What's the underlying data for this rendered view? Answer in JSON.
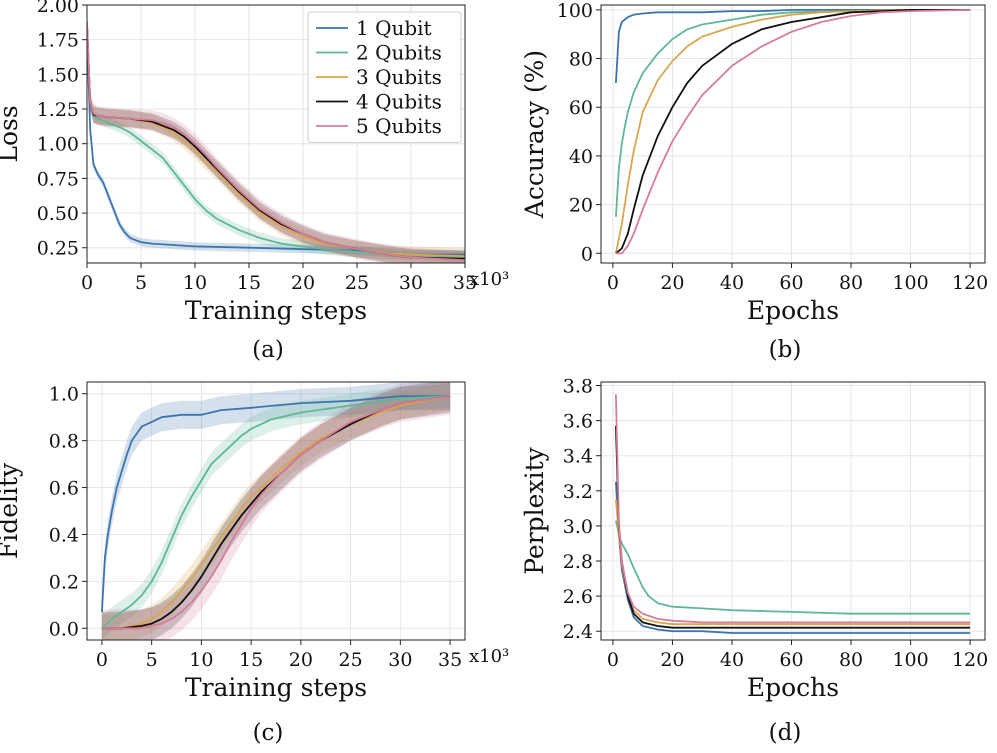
{
  "chart_data": [
    {
      "id": "a",
      "type": "line",
      "caption": "(a)",
      "xlabel": "Training steps",
      "ylabel": "Loss",
      "x_multiplier": "x10^3",
      "xlim": [
        0,
        35
      ],
      "ylim": [
        0.14,
        2.0
      ],
      "xticks": [
        0,
        5,
        10,
        15,
        20,
        25,
        30,
        35
      ],
      "yticks": [
        0.25,
        0.5,
        0.75,
        1.0,
        1.25,
        1.5,
        1.75,
        2.0
      ],
      "xtick_labels": [
        "0",
        "5",
        "10",
        "15",
        "20",
        "25",
        "30",
        "35"
      ],
      "ytick_labels": [
        "0.25",
        "0.50",
        "0.75",
        "1.00",
        "1.25",
        "1.50",
        "1.75",
        "2.00"
      ],
      "grid": true,
      "shaded_band": true,
      "legend": {
        "placement": "top-right"
      },
      "series": [
        {
          "name": "1 Qubit",
          "color": "#3b75af",
          "band": 0.03,
          "x": [
            0,
            0.3,
            0.6,
            1,
            1.5,
            2,
            2.5,
            3,
            3.5,
            4,
            5,
            6,
            8,
            10,
            15,
            20,
            25,
            30,
            35
          ],
          "y": [
            1.82,
            1.1,
            0.85,
            0.78,
            0.72,
            0.62,
            0.52,
            0.42,
            0.36,
            0.32,
            0.29,
            0.28,
            0.27,
            0.26,
            0.25,
            0.24,
            0.23,
            0.2,
            0.2
          ]
        },
        {
          "name": "2 Qubits",
          "color": "#5fb894",
          "band": 0.04,
          "x": [
            0,
            0.3,
            0.6,
            1,
            2,
            3,
            4,
            5,
            6,
            7,
            8,
            9,
            10,
            11,
            12,
            13,
            14,
            16,
            18,
            20,
            22,
            25,
            30,
            35
          ],
          "y": [
            1.85,
            1.3,
            1.2,
            1.18,
            1.15,
            1.12,
            1.08,
            1.02,
            0.96,
            0.9,
            0.8,
            0.7,
            0.6,
            0.52,
            0.46,
            0.42,
            0.38,
            0.32,
            0.28,
            0.26,
            0.24,
            0.22,
            0.2,
            0.18
          ]
        },
        {
          "name": "3 Qubits",
          "color": "#d9a54e",
          "band": 0.06,
          "x": [
            0,
            0.3,
            0.6,
            1,
            2,
            4,
            6,
            7,
            8,
            9,
            10,
            11,
            12,
            13,
            14,
            15,
            16,
            18,
            20,
            22,
            25,
            28,
            30,
            35
          ],
          "y": [
            1.86,
            1.3,
            1.21,
            1.2,
            1.19,
            1.18,
            1.15,
            1.12,
            1.08,
            1.02,
            0.95,
            0.87,
            0.8,
            0.72,
            0.64,
            0.57,
            0.5,
            0.4,
            0.33,
            0.28,
            0.24,
            0.21,
            0.2,
            0.19
          ]
        },
        {
          "name": "4 Qubits",
          "color": "#111111",
          "band": 0.06,
          "x": [
            0,
            0.3,
            0.6,
            1,
            2,
            4,
            6,
            7,
            8,
            9,
            10,
            11,
            12,
            13,
            14,
            15,
            16,
            18,
            20,
            22,
            25,
            28,
            30,
            35
          ],
          "y": [
            1.86,
            1.3,
            1.21,
            1.2,
            1.19,
            1.18,
            1.16,
            1.13,
            1.1,
            1.05,
            0.98,
            0.9,
            0.82,
            0.74,
            0.66,
            0.59,
            0.52,
            0.42,
            0.35,
            0.29,
            0.24,
            0.2,
            0.18,
            0.17
          ]
        },
        {
          "name": "5 Qubits",
          "color": "#d87c9d",
          "band": 0.07,
          "x": [
            0,
            0.3,
            0.6,
            1,
            2,
            4,
            6,
            7,
            8,
            9,
            10,
            11,
            12,
            13,
            14,
            15,
            16,
            18,
            20,
            22,
            25,
            28,
            30,
            35
          ],
          "y": [
            1.88,
            1.3,
            1.22,
            1.2,
            1.19,
            1.18,
            1.17,
            1.15,
            1.12,
            1.07,
            1.0,
            0.92,
            0.83,
            0.75,
            0.67,
            0.6,
            0.53,
            0.43,
            0.35,
            0.29,
            0.24,
            0.2,
            0.18,
            0.16
          ]
        }
      ]
    },
    {
      "id": "b",
      "type": "line",
      "caption": "(b)",
      "xlabel": "Epochs",
      "ylabel": "Accuracy (%)",
      "xlim": [
        -4,
        125
      ],
      "ylim": [
        -4,
        102
      ],
      "xticks": [
        0,
        20,
        40,
        60,
        80,
        100,
        120
      ],
      "yticks": [
        0,
        20,
        40,
        60,
        80,
        100
      ],
      "xtick_labels": [
        "0",
        "20",
        "40",
        "60",
        "80",
        "100",
        "120"
      ],
      "ytick_labels": [
        "0",
        "20",
        "40",
        "60",
        "80",
        "100"
      ],
      "grid": true,
      "series": [
        {
          "color": "#3b75af",
          "x": [
            1,
            2,
            3,
            5,
            7,
            10,
            15,
            20,
            30,
            40,
            50,
            60,
            80,
            100,
            120
          ],
          "y": [
            70,
            91,
            95,
            97,
            98,
            98.5,
            99,
            99,
            99,
            99.5,
            99.5,
            100,
            100,
            100,
            100
          ]
        },
        {
          "color": "#5fb894",
          "x": [
            1,
            2,
            3,
            4,
            5,
            7,
            10,
            15,
            20,
            25,
            30,
            40,
            50,
            60,
            80,
            100,
            120
          ],
          "y": [
            15,
            35,
            45,
            52,
            58,
            66,
            74,
            82,
            88,
            92,
            94,
            96,
            98,
            99,
            99.5,
            100,
            100
          ]
        },
        {
          "color": "#d9a54e",
          "x": [
            1,
            3,
            5,
            7,
            10,
            15,
            20,
            25,
            30,
            40,
            50,
            60,
            70,
            80,
            100,
            120
          ],
          "y": [
            0,
            12,
            28,
            42,
            58,
            71,
            79,
            85,
            89,
            93,
            96,
            98,
            99,
            99.5,
            100,
            100
          ]
        },
        {
          "color": "#111111",
          "x": [
            1,
            3,
            5,
            7,
            10,
            15,
            20,
            25,
            30,
            40,
            50,
            60,
            70,
            80,
            90,
            100,
            120
          ],
          "y": [
            0,
            2,
            8,
            18,
            32,
            48,
            60,
            70,
            77,
            86,
            92,
            95,
            97,
            99,
            99.5,
            100,
            100
          ]
        },
        {
          "color": "#d87c9d",
          "x": [
            1,
            3,
            5,
            7,
            10,
            15,
            20,
            25,
            30,
            40,
            50,
            60,
            70,
            80,
            90,
            100,
            120
          ],
          "y": [
            0,
            0,
            3,
            8,
            18,
            33,
            46,
            56,
            65,
            77,
            85,
            91,
            95,
            97.5,
            99,
            99.5,
            100
          ]
        }
      ]
    },
    {
      "id": "c",
      "type": "line",
      "caption": "(c)",
      "xlabel": "Training steps",
      "ylabel": "Fidelity",
      "x_multiplier": "x10^3",
      "xlim": [
        -1.5,
        36.5
      ],
      "ylim": [
        -0.05,
        1.05
      ],
      "xticks": [
        0,
        5,
        10,
        15,
        20,
        25,
        30,
        35
      ],
      "yticks": [
        0.0,
        0.2,
        0.4,
        0.6,
        0.8,
        1.0
      ],
      "xtick_labels": [
        "0",
        "5",
        "10",
        "15",
        "20",
        "25",
        "30",
        "35"
      ],
      "ytick_labels": [
        "0.0",
        "0.2",
        "0.4",
        "0.6",
        "0.8",
        "1.0"
      ],
      "grid": true,
      "shaded_band": true,
      "series": [
        {
          "color": "#3b75af",
          "band": 0.06,
          "x": [
            0,
            0.3,
            0.6,
            1,
            1.5,
            2,
            2.5,
            3,
            4,
            5,
            6,
            8,
            10,
            12,
            15,
            20,
            25,
            30,
            35
          ],
          "y": [
            0.07,
            0.3,
            0.4,
            0.5,
            0.6,
            0.67,
            0.74,
            0.8,
            0.86,
            0.88,
            0.9,
            0.91,
            0.91,
            0.93,
            0.94,
            0.96,
            0.97,
            0.99,
            0.99
          ]
        },
        {
          "color": "#5fb894",
          "band": 0.05,
          "x": [
            0,
            1,
            2,
            3,
            4,
            5,
            6,
            7,
            8,
            9,
            10,
            11,
            12,
            13,
            14,
            15,
            17,
            20,
            25,
            30,
            35
          ],
          "y": [
            0,
            0.04,
            0.07,
            0.1,
            0.14,
            0.2,
            0.28,
            0.38,
            0.48,
            0.56,
            0.63,
            0.7,
            0.74,
            0.78,
            0.82,
            0.85,
            0.89,
            0.92,
            0.95,
            0.98,
            0.99
          ]
        },
        {
          "color": "#d9a54e",
          "band": 0.06,
          "x": [
            0,
            2,
            4,
            5,
            6,
            7,
            8,
            9,
            10,
            11,
            12,
            13,
            14,
            15,
            16,
            18,
            20,
            22,
            25,
            28,
            30,
            35
          ],
          "y": [
            0,
            0,
            0.02,
            0.04,
            0.07,
            0.11,
            0.16,
            0.21,
            0.27,
            0.33,
            0.39,
            0.45,
            0.51,
            0.56,
            0.6,
            0.68,
            0.75,
            0.81,
            0.87,
            0.92,
            0.95,
            0.99
          ]
        },
        {
          "color": "#111111",
          "band": 0.07,
          "x": [
            0,
            2,
            4,
            5,
            6,
            7,
            8,
            9,
            10,
            11,
            12,
            13,
            14,
            15,
            16,
            18,
            20,
            22,
            25,
            28,
            30,
            35
          ],
          "y": [
            0,
            0,
            0.01,
            0.02,
            0.04,
            0.07,
            0.11,
            0.16,
            0.22,
            0.29,
            0.36,
            0.42,
            0.48,
            0.53,
            0.58,
            0.66,
            0.74,
            0.8,
            0.87,
            0.93,
            0.96,
            0.99
          ]
        },
        {
          "color": "#d87c9d",
          "band": 0.08,
          "x": [
            0,
            2,
            4,
            6,
            7,
            8,
            9,
            10,
            11,
            12,
            13,
            14,
            15,
            16,
            18,
            20,
            22,
            25,
            28,
            30,
            35
          ],
          "y": [
            0,
            0,
            0,
            0.02,
            0.04,
            0.07,
            0.11,
            0.16,
            0.22,
            0.29,
            0.37,
            0.44,
            0.51,
            0.57,
            0.66,
            0.74,
            0.8,
            0.88,
            0.93,
            0.96,
            0.99
          ]
        }
      ]
    },
    {
      "id": "d",
      "type": "line",
      "caption": "(d)",
      "xlabel": "Epochs",
      "ylabel": "Perplexity",
      "xlim": [
        -4,
        125
      ],
      "ylim": [
        2.35,
        3.82
      ],
      "xticks": [
        0,
        20,
        40,
        60,
        80,
        100,
        120
      ],
      "yticks": [
        2.4,
        2.6,
        2.8,
        3.0,
        3.2,
        3.4,
        3.6,
        3.8
      ],
      "xtick_labels": [
        "0",
        "20",
        "40",
        "60",
        "80",
        "100",
        "120"
      ],
      "ytick_labels": [
        "2.4",
        "2.6",
        "2.8",
        "3.0",
        "3.2",
        "3.4",
        "3.6",
        "3.8"
      ],
      "grid": true,
      "series": [
        {
          "color": "#3b75af",
          "x": [
            1,
            2,
            3,
            5,
            7,
            10,
            15,
            20,
            30,
            40,
            60,
            80,
            100,
            120
          ],
          "y": [
            3.25,
            2.95,
            2.75,
            2.58,
            2.48,
            2.43,
            2.41,
            2.4,
            2.4,
            2.39,
            2.39,
            2.39,
            2.39,
            2.39
          ]
        },
        {
          "color": "#5fb894",
          "x": [
            1,
            2,
            3,
            5,
            7,
            10,
            12,
            15,
            20,
            30,
            40,
            60,
            80,
            100,
            120
          ],
          "y": [
            3.03,
            2.95,
            2.9,
            2.84,
            2.76,
            2.65,
            2.6,
            2.56,
            2.54,
            2.53,
            2.52,
            2.51,
            2.5,
            2.5,
            2.5
          ]
        },
        {
          "color": "#d9a54e",
          "x": [
            1,
            2,
            3,
            5,
            7,
            10,
            15,
            20,
            30,
            40,
            60,
            80,
            100,
            120
          ],
          "y": [
            3.15,
            2.95,
            2.78,
            2.6,
            2.52,
            2.47,
            2.45,
            2.44,
            2.44,
            2.44,
            2.44,
            2.44,
            2.44,
            2.44
          ]
        },
        {
          "color": "#111111",
          "x": [
            1,
            2,
            3,
            5,
            7,
            10,
            15,
            20,
            30,
            40,
            60,
            80,
            100,
            120
          ],
          "y": [
            3.57,
            3.0,
            2.8,
            2.6,
            2.5,
            2.45,
            2.43,
            2.42,
            2.42,
            2.42,
            2.42,
            2.42,
            2.42,
            2.42
          ]
        },
        {
          "color": "#d87c9d",
          "x": [
            1,
            2,
            3,
            5,
            7,
            10,
            15,
            20,
            30,
            40,
            60,
            80,
            100,
            120
          ],
          "y": [
            3.75,
            3.02,
            2.8,
            2.62,
            2.54,
            2.5,
            2.47,
            2.46,
            2.45,
            2.45,
            2.45,
            2.45,
            2.45,
            2.45
          ]
        }
      ]
    }
  ]
}
